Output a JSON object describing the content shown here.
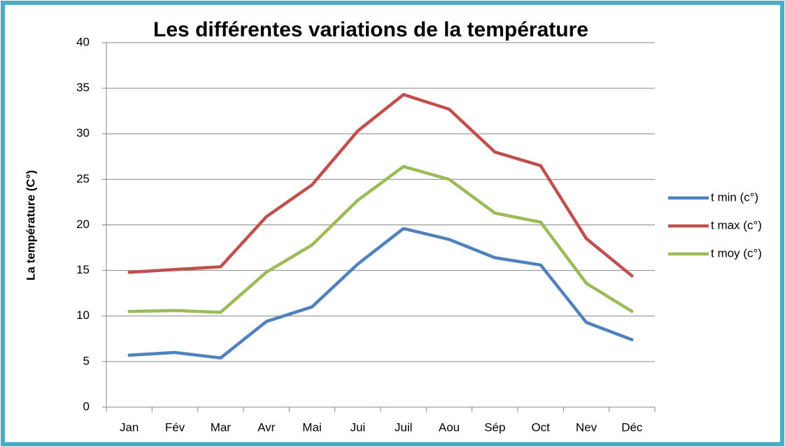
{
  "chart_data": {
    "type": "line",
    "title": "Les différentes variations de la température",
    "y_label": "La température (C°)",
    "categories": [
      "Jan",
      "Fév",
      "Mar",
      "Avr",
      "Mai",
      "Jui",
      "Juil",
      "Aou",
      "Sép",
      "Oct",
      "Nev",
      "Déc"
    ],
    "series": [
      {
        "name": "t min (c°)",
        "color": "#4f81bd",
        "values": [
          5.7,
          6.0,
          5.4,
          9.4,
          11.0,
          15.7,
          19.6,
          18.4,
          16.4,
          15.6,
          9.3,
          7.4
        ]
      },
      {
        "name": "t max (c°)",
        "color": "#c0504d",
        "values": [
          14.8,
          15.1,
          15.4,
          20.9,
          24.4,
          30.3,
          34.3,
          32.7,
          28.0,
          26.5,
          18.5,
          14.4
        ]
      },
      {
        "name": "t moy (c°)",
        "color": "#9bbb59",
        "values": [
          10.5,
          10.6,
          10.4,
          14.8,
          17.8,
          22.7,
          26.4,
          25.0,
          21.3,
          20.3,
          13.6,
          10.5
        ]
      }
    ],
    "ylim": [
      0,
      40
    ],
    "yticks": [
      0,
      5,
      10,
      15,
      20,
      25,
      30,
      35,
      40
    ],
    "grid": true,
    "legend": "right"
  }
}
